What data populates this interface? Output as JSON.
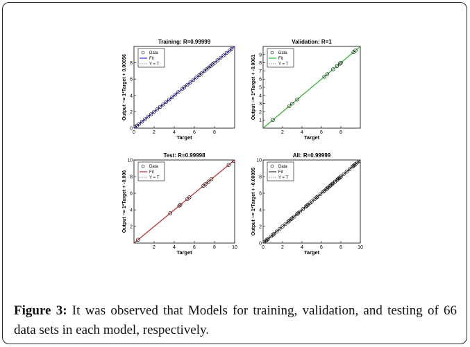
{
  "chart_data": [
    {
      "type": "scatter",
      "title": "Training: R=0.99999",
      "xlabel": "Target",
      "ylabel": "Output ~= 1*Target + 0.00056",
      "xlim": [
        0,
        10
      ],
      "ylim": [
        0,
        10
      ],
      "xticks": [
        0,
        2,
        4,
        6,
        8
      ],
      "yticks": [
        0,
        2,
        4,
        6,
        8
      ],
      "fit_color": "#2a2aff",
      "legend": [
        "Data",
        "Fit",
        "Y = T"
      ],
      "legend_position": "top-left",
      "data_x": [
        0.1,
        0.3,
        0.5,
        0.8,
        1.1,
        1.4,
        1.7,
        2.0,
        2.3,
        2.6,
        2.9,
        3.2,
        3.5,
        3.8,
        4.1,
        4.4,
        4.8,
        5.0,
        5.3,
        5.6,
        5.9,
        6.2,
        6.5,
        6.7,
        7.0,
        7.2,
        7.4,
        7.6,
        7.8,
        8.0,
        8.3,
        8.6,
        8.9,
        9.2,
        9.5,
        9.7
      ]
    },
    {
      "type": "scatter",
      "title": "Validation: R=1",
      "xlabel": "Target",
      "ylabel": "Output ~= 1*Target + -0.0061",
      "xlim": [
        0,
        10
      ],
      "ylim": [
        0,
        10
      ],
      "xticks": [
        2,
        4,
        6,
        8
      ],
      "yticks": [
        1,
        2,
        3,
        4,
        5,
        6,
        7,
        8,
        9
      ],
      "fit_color": "#22bb22",
      "legend": [
        "Data",
        "Fit",
        "Y = T"
      ],
      "legend_position": "top-left",
      "data_x": [
        1.0,
        2.7,
        3.0,
        3.5,
        6.3,
        6.6,
        7.2,
        7.6,
        7.9,
        8.0,
        9.3,
        9.5
      ]
    },
    {
      "type": "scatter",
      "title": "Test: R=0.99998",
      "xlabel": "Target",
      "ylabel": "Output ~= 1*Target + -0.006",
      "xlim": [
        0,
        10
      ],
      "ylim": [
        0,
        10
      ],
      "xticks": [
        2,
        4,
        6,
        8,
        10
      ],
      "yticks": [
        2,
        4,
        6,
        8,
        10
      ],
      "fit_color": "#cc2222",
      "legend": [
        "Data",
        "Fit",
        "Y = T"
      ],
      "legend_position": "top-left",
      "data_x": [
        0.4,
        3.6,
        4.5,
        4.6,
        5.3,
        5.5,
        6.9,
        7.1,
        7.4,
        7.7,
        9.4,
        9.9
      ]
    },
    {
      "type": "scatter",
      "title": "All: R=0.99999",
      "xlabel": "Target",
      "ylabel": "Output ~= 1*Target + -0.00095",
      "xlim": [
        0,
        10
      ],
      "ylim": [
        0,
        10
      ],
      "xticks": [
        0,
        2,
        4,
        6,
        8,
        10
      ],
      "yticks": [
        0,
        2,
        4,
        6,
        8,
        10
      ],
      "fit_color": "#333333",
      "legend": [
        "Data",
        "Fit",
        "Y = T"
      ],
      "legend_position": "top-left",
      "data_x": [
        0.1,
        0.3,
        0.4,
        0.5,
        0.8,
        1.0,
        1.1,
        1.4,
        1.7,
        2.0,
        2.3,
        2.6,
        2.7,
        2.9,
        3.0,
        3.2,
        3.5,
        3.6,
        3.8,
        4.1,
        4.4,
        4.5,
        4.6,
        4.8,
        5.0,
        5.3,
        5.5,
        5.6,
        5.9,
        6.2,
        6.3,
        6.5,
        6.6,
        6.7,
        6.9,
        7.0,
        7.1,
        7.2,
        7.4,
        7.6,
        7.7,
        7.8,
        7.9,
        8.0,
        8.3,
        8.6,
        8.9,
        9.2,
        9.3,
        9.4,
        9.5,
        9.7,
        9.9
      ]
    }
  ],
  "caption": {
    "label": "Figure 3:",
    "text": " It was observed that Models for training, validation, and testing of 66 data sets in each model, respectively."
  }
}
